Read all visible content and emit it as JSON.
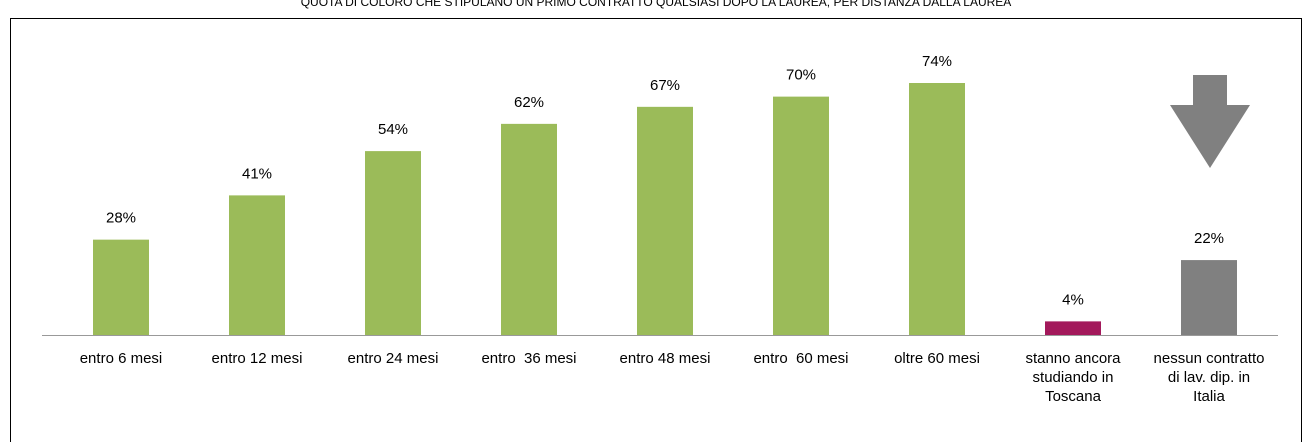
{
  "chart_data": {
    "type": "bar",
    "title": "QUOTA DI COLORO CHE STIPULANO UN PRIMO CONTRATTO QUALSIASI DOPO LA LAUREA, PER DISTANZA DALLA LAUREA",
    "categories": [
      "entro 6 mesi",
      "entro 12 mesi",
      "entro 24 mesi",
      "entro  36 mesi",
      "entro 48 mesi",
      "entro  60 mesi",
      "oltre 60 mesi",
      "stanno ancora\nstudiando in\nToscana",
      "nessun contratto\ndi lav. dip. in\nItalia"
    ],
    "values": [
      28,
      41,
      54,
      62,
      67,
      70,
      74,
      4,
      22
    ],
    "value_labels": [
      "28%",
      "41%",
      "54%",
      "62%",
      "67%",
      "70%",
      "74%",
      "4%",
      "22%"
    ],
    "colors": [
      "#9bbb59",
      "#9bbb59",
      "#9bbb59",
      "#9bbb59",
      "#9bbb59",
      "#9bbb59",
      "#9bbb59",
      "#a3195b",
      "#808080"
    ]
  }
}
